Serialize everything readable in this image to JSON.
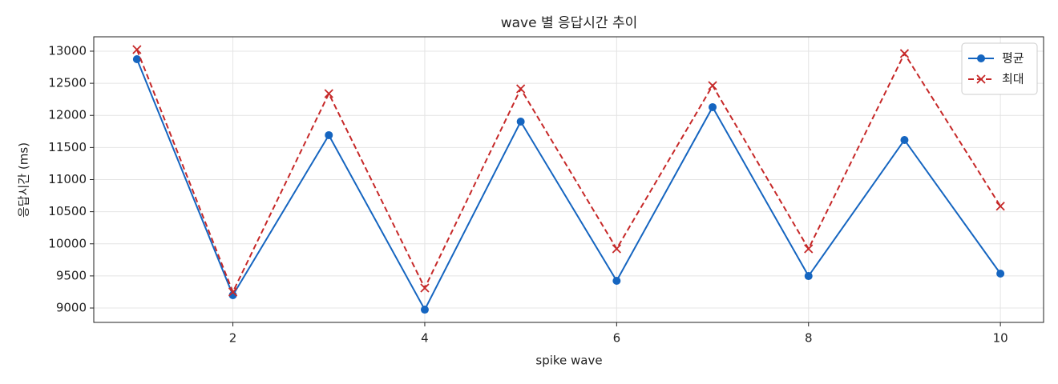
{
  "chart_data": {
    "type": "line",
    "title": "wave 별 응답시간 추이",
    "x_label": "spike wave",
    "y_label": "응답시간 (ms)",
    "x": [
      1,
      2,
      3,
      4,
      5,
      6,
      7,
      8,
      9,
      10
    ],
    "series": [
      {
        "name": "평균",
        "color": "#1565c0",
        "marker": "circle",
        "dash": "solid",
        "values": [
          12875,
          9200,
          11692,
          8975,
          11903,
          9424,
          12128,
          9498,
          11617,
          9536
        ]
      },
      {
        "name": "최대",
        "color": "#c62828",
        "marker": "x",
        "dash": "dashed",
        "values": [
          13025,
          9250,
          12340,
          9312,
          12414,
          9922,
          12464,
          9922,
          12963,
          10586
        ]
      }
    ],
    "xlim": [
      0.55,
      10.45
    ],
    "xticks": [
      2,
      4,
      6,
      8,
      10
    ],
    "ylim": [
      8776,
      13224
    ],
    "yticks": [
      9000,
      9500,
      10000,
      10500,
      11000,
      11500,
      12000,
      12500,
      13000
    ],
    "grid": true,
    "legend": "upper right"
  }
}
